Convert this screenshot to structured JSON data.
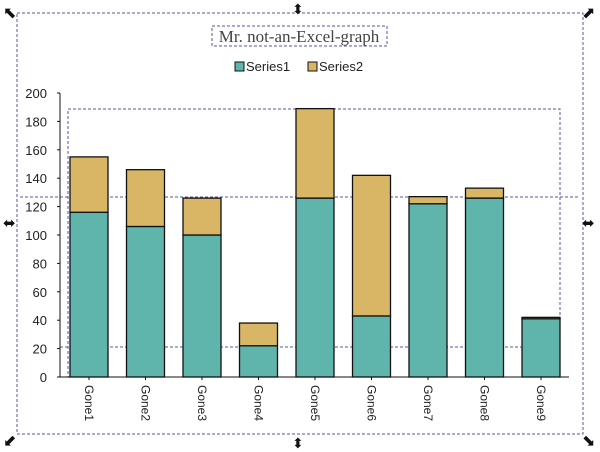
{
  "chart_data": {
    "type": "bar",
    "stacked": true,
    "title": "Mr. not-an-Excel-graph",
    "xlabel": "",
    "ylabel": "",
    "ylim": [
      0,
      200
    ],
    "yticks": [
      0,
      20,
      40,
      60,
      80,
      100,
      120,
      140,
      160,
      180,
      200
    ],
    "categories": [
      "Gone1",
      "Gone2",
      "Gone3",
      "Gone4",
      "Gone5",
      "Gone6",
      "Gone7",
      "Gone8",
      "Gone9"
    ],
    "series": [
      {
        "name": "Series1",
        "color": "#5fb5ab",
        "values": [
          116,
          106,
          100,
          22,
          126,
          43,
          122,
          126,
          41
        ]
      },
      {
        "name": "Series2",
        "color": "#d9b566",
        "values": [
          39,
          40,
          26,
          16,
          63,
          99,
          5,
          7,
          1
        ]
      }
    ],
    "grid": false,
    "legend": "top-center"
  },
  "colors": {
    "handle": "#111111",
    "selection_dash": "#5555aa",
    "bar_outline": "#111111"
  }
}
